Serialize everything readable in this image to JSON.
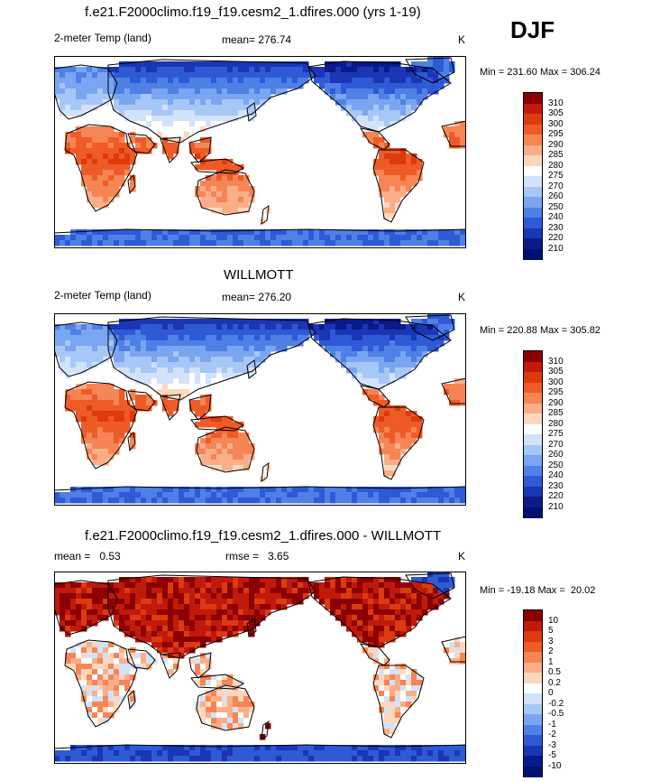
{
  "season": "DJF",
  "chart_data": [
    {
      "type": "heatmap",
      "title": "f.e21.F2000climo.f19_f19.cesm2_1.dfires.000 (yrs 1-19)",
      "variable": "2-meter Temp (land)",
      "stat_label": "mean= 276.74",
      "units": "K",
      "min": 231.6,
      "max": 306.24,
      "minmax_label": "Min = 231.60 Max = 306.24",
      "levels": [
        "310",
        "305",
        "300",
        "295",
        "290",
        "285",
        "280",
        "275",
        "270",
        "260",
        "250",
        "240",
        "230",
        "220",
        "210"
      ],
      "colors": [
        "#8b0000",
        "#c1190b",
        "#dd3a0e",
        "#ef5b26",
        "#f58555",
        "#f9ae88",
        "#fcd7bd",
        "#ffffff",
        "#d2e2fb",
        "#a7c7f7",
        "#7aa5f0",
        "#4f80e6",
        "#2e5ad6",
        "#1a36b5",
        "#0a1a8a",
        "#001070"
      ]
    },
    {
      "type": "heatmap",
      "title": "WILLMOTT",
      "variable": "2-meter Temp (land)",
      "stat_label": "mean= 276.20",
      "units": "K",
      "min": 220.88,
      "max": 305.82,
      "minmax_label": "Min = 220.88 Max = 305.82",
      "levels": [
        "310",
        "305",
        "300",
        "295",
        "290",
        "285",
        "280",
        "275",
        "270",
        "260",
        "250",
        "240",
        "230",
        "220",
        "210"
      ],
      "colors": [
        "#8b0000",
        "#c1190b",
        "#dd3a0e",
        "#ef5b26",
        "#f58555",
        "#f9ae88",
        "#fcd7bd",
        "#ffffff",
        "#d2e2fb",
        "#a7c7f7",
        "#7aa5f0",
        "#4f80e6",
        "#2e5ad6",
        "#1a36b5",
        "#0a1a8a",
        "#001070"
      ]
    },
    {
      "type": "heatmap",
      "title": "f.e21.F2000climo.f19_f19.cesm2_1.dfires.000 - WILLMOTT",
      "stat_label": "mean =   0.53",
      "rmse_label": "rmse =   3.65",
      "units": "K",
      "min": -19.18,
      "max": 20.02,
      "minmax_label": "Min = -19.18 Max =  20.02",
      "levels": [
        "10",
        "5",
        "3",
        "2",
        "1",
        "0.5",
        "0.2",
        "0",
        "-0.2",
        "-0.5",
        "-1",
        "-2",
        "-3",
        "-5",
        "-10"
      ],
      "colors": [
        "#8b0000",
        "#c1190b",
        "#dd3a0e",
        "#ef5b26",
        "#f58555",
        "#f9ae88",
        "#fcd7bd",
        "#ffffff",
        "#d2e2fb",
        "#a7c7f7",
        "#7aa5f0",
        "#4f80e6",
        "#2e5ad6",
        "#1a36b5",
        "#0a1a8a",
        "#001070"
      ]
    }
  ]
}
